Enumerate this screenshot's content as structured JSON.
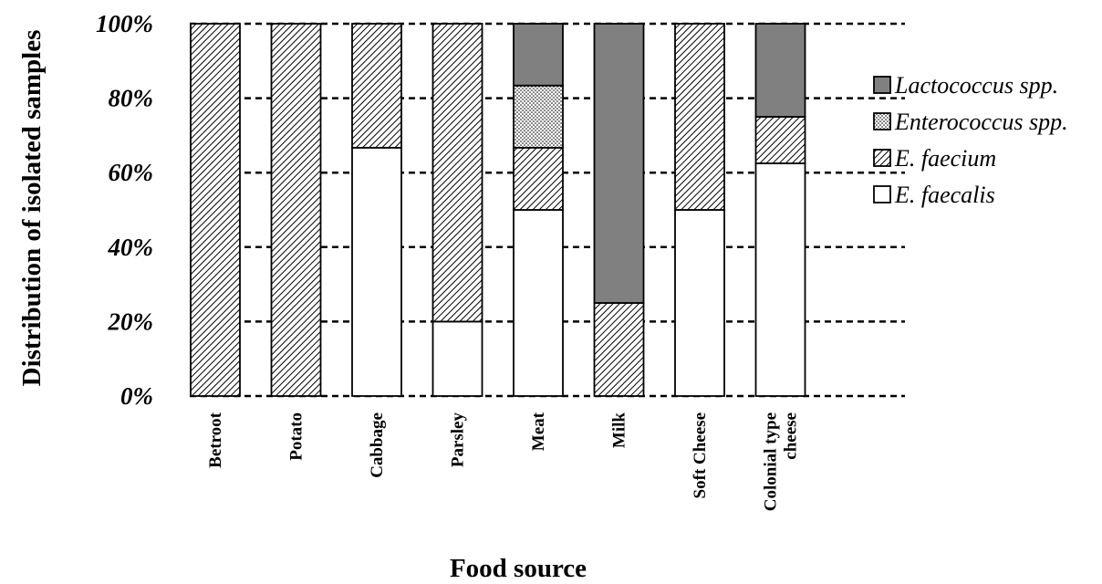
{
  "chart_data": {
    "type": "bar",
    "stacked": true,
    "xlabel": "Food source",
    "ylabel": "Distribution of isolated samples",
    "ylim": [
      0,
      100
    ],
    "yticks": [
      "0%",
      "20%",
      "40%",
      "60%",
      "80%",
      "100%"
    ],
    "grid": true,
    "legend_position": "right",
    "categories": [
      [
        "Betroot"
      ],
      [
        "Potato"
      ],
      [
        "Cabbage"
      ],
      [
        "Parsley"
      ],
      [
        "Meat"
      ],
      [
        "Milk"
      ],
      [
        "Soft Cheese"
      ],
      [
        "Colonial type",
        "cheese"
      ]
    ],
    "series": [
      {
        "name": "E. faecalis",
        "fill": "white",
        "values": [
          0,
          0,
          66.7,
          20,
          50,
          0,
          50,
          62.5
        ]
      },
      {
        "name": "E. faecium",
        "fill": "hatch",
        "values": [
          100,
          100,
          33.3,
          80,
          16.7,
          25,
          50,
          12.5
        ]
      },
      {
        "name": "Enterococcus spp.",
        "fill": "dots",
        "values": [
          0,
          0,
          0,
          0,
          16.7,
          0,
          0,
          0
        ]
      },
      {
        "name": "Lactococcus spp.",
        "fill": "gray",
        "values": [
          0,
          0,
          0,
          0,
          16.6,
          75,
          0,
          25
        ]
      }
    ],
    "legend_order": [
      "Lactococcus spp.",
      "Enterococcus spp.",
      "E. faecium",
      "E. faecalis"
    ],
    "colors": {
      "gray": "#808080",
      "white": "#ffffff",
      "hatch_line": "#000000"
    }
  }
}
